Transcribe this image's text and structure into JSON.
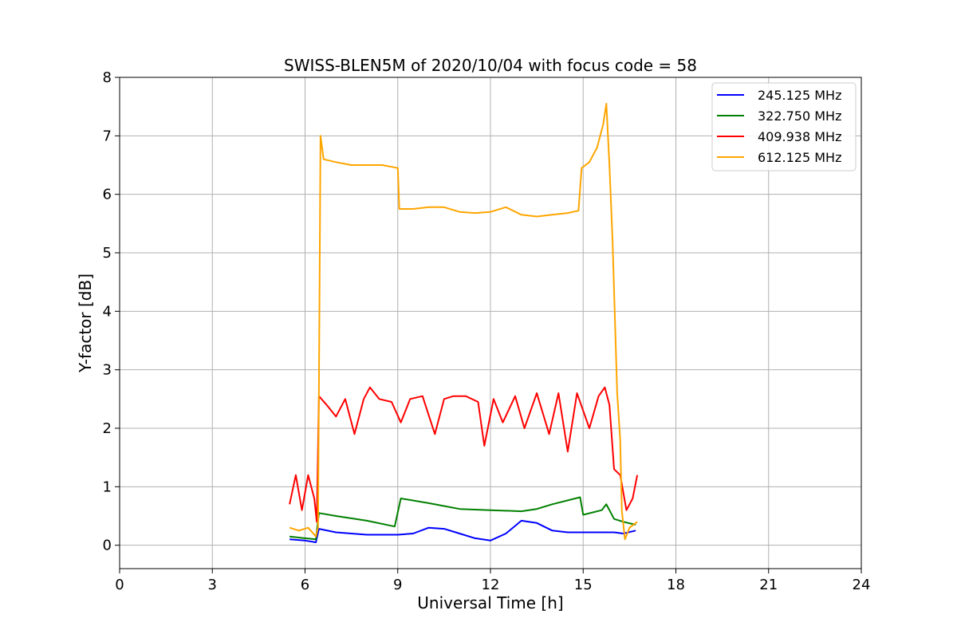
{
  "chart_data": {
    "type": "line",
    "title": "SWISS-BLEN5M of 2020/10/04 with focus code = 58",
    "xlabel": "Universal Time [h]",
    "ylabel": "Y-factor [dB]",
    "xlim": [
      0,
      24
    ],
    "ylim": [
      -0.4,
      8
    ],
    "xticks": [
      0,
      3,
      6,
      9,
      12,
      15,
      18,
      21,
      24
    ],
    "yticks": [
      0,
      1,
      2,
      3,
      4,
      5,
      6,
      7,
      8
    ],
    "grid": true,
    "legend_position": "top-right",
    "series": [
      {
        "name": "245.125 MHz",
        "color": "#0000ff",
        "x": [
          5.5,
          6.0,
          6.35,
          6.45,
          7.0,
          8.0,
          9.0,
          9.5,
          10.0,
          10.5,
          11.0,
          11.5,
          12.0,
          12.5,
          13.0,
          13.5,
          14.0,
          14.5,
          15.0,
          15.5,
          16.0,
          16.3,
          16.7
        ],
        "y": [
          0.1,
          0.08,
          0.05,
          0.28,
          0.22,
          0.18,
          0.18,
          0.2,
          0.3,
          0.28,
          0.2,
          0.12,
          0.08,
          0.2,
          0.42,
          0.38,
          0.25,
          0.22,
          0.22,
          0.22,
          0.22,
          0.2,
          0.25
        ]
      },
      {
        "name": "322.750 MHz",
        "color": "#008000",
        "x": [
          5.5,
          6.0,
          6.35,
          6.45,
          7.0,
          8.0,
          8.9,
          9.1,
          10.0,
          11.0,
          12.0,
          13.0,
          13.5,
          14.0,
          14.9,
          15.0,
          15.6,
          15.75,
          16.0,
          16.3,
          16.7
        ],
        "y": [
          0.15,
          0.12,
          0.1,
          0.55,
          0.5,
          0.42,
          0.32,
          0.8,
          0.72,
          0.62,
          0.6,
          0.58,
          0.62,
          0.7,
          0.82,
          0.52,
          0.6,
          0.7,
          0.45,
          0.4,
          0.35
        ]
      },
      {
        "name": "409.938 MHz",
        "color": "#ff0000",
        "x": [
          5.5,
          5.7,
          5.9,
          6.1,
          6.3,
          6.38,
          6.45,
          6.7,
          7.0,
          7.3,
          7.6,
          7.9,
          8.1,
          8.4,
          8.8,
          9.1,
          9.4,
          9.8,
          10.2,
          10.5,
          10.8,
          11.2,
          11.6,
          11.8,
          12.1,
          12.4,
          12.8,
          13.1,
          13.5,
          13.9,
          14.2,
          14.5,
          14.8,
          15.2,
          15.5,
          15.7,
          15.85,
          16.0,
          16.2,
          16.4,
          16.6,
          16.75
        ],
        "y": [
          0.7,
          1.2,
          0.6,
          1.2,
          0.8,
          0.4,
          2.55,
          2.4,
          2.2,
          2.5,
          1.9,
          2.5,
          2.7,
          2.5,
          2.45,
          2.1,
          2.5,
          2.55,
          1.9,
          2.5,
          2.55,
          2.55,
          2.45,
          1.7,
          2.5,
          2.1,
          2.55,
          2.0,
          2.6,
          1.9,
          2.6,
          1.6,
          2.6,
          2.0,
          2.55,
          2.7,
          2.4,
          1.3,
          1.2,
          0.6,
          0.8,
          1.2
        ]
      },
      {
        "name": "612.125 MHz",
        "color": "#ffa500",
        "x": [
          5.5,
          5.8,
          6.1,
          6.35,
          6.42,
          6.5,
          6.6,
          7.0,
          7.5,
          8.0,
          8.5,
          9.0,
          9.05,
          9.5,
          10.0,
          10.5,
          11.0,
          11.5,
          12.0,
          12.5,
          13.0,
          13.5,
          14.0,
          14.5,
          14.85,
          14.95,
          15.2,
          15.45,
          15.65,
          15.75,
          15.85,
          15.95,
          16.05,
          16.1,
          16.2,
          16.25,
          16.35,
          16.5,
          16.75
        ],
        "y": [
          0.3,
          0.25,
          0.3,
          0.15,
          0.3,
          7.0,
          6.6,
          6.55,
          6.5,
          6.5,
          6.5,
          6.45,
          5.75,
          5.75,
          5.78,
          5.78,
          5.7,
          5.68,
          5.7,
          5.78,
          5.65,
          5.62,
          5.65,
          5.68,
          5.72,
          6.45,
          6.55,
          6.8,
          7.2,
          7.55,
          6.5,
          5.2,
          3.5,
          2.6,
          1.8,
          0.6,
          0.1,
          0.3,
          0.4
        ]
      }
    ]
  }
}
